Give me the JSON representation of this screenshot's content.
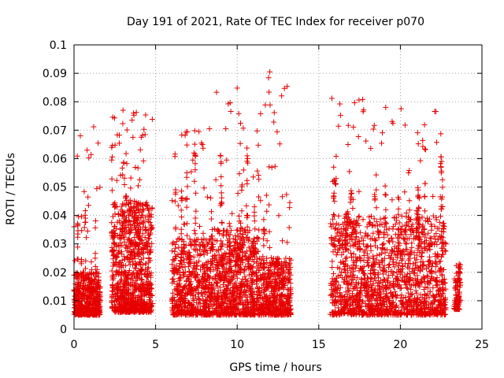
{
  "chart_data": {
    "type": "scatter",
    "title": "Day 191 of 2021, Rate Of TEC Index for receiver p070",
    "xlabel": "GPS time / hours",
    "ylabel": "ROTI / TECUs",
    "xlim": [
      0,
      25
    ],
    "ylim": [
      0,
      0.1
    ],
    "grid": true,
    "marker": "+",
    "color": "#e60000",
    "x_ticks": [
      0,
      5,
      10,
      15,
      20,
      25
    ],
    "x_tick_labels": [
      "0",
      "5",
      "10",
      "15",
      "20",
      "25"
    ],
    "y_ticks": [
      0,
      0.01,
      0.02,
      0.03,
      0.04,
      0.05,
      0.06,
      0.07,
      0.08,
      0.09,
      0.1
    ],
    "y_tick_labels": [
      "0",
      "0.01",
      "0.02",
      "0.03",
      "0.04",
      "0.05",
      "0.06",
      "0.07",
      "0.08",
      "0.09",
      "0.1"
    ],
    "clusters": [
      {
        "x_range": [
          0.0,
          1.6
        ],
        "typical": [
          0.005,
          0.02
        ],
        "max": 0.071,
        "density": 500
      },
      {
        "x_range": [
          2.3,
          4.8
        ],
        "typical": [
          0.006,
          0.045
        ],
        "max": 0.077,
        "density": 900
      },
      {
        "x_range": [
          6.0,
          8.7
        ],
        "typical": [
          0.005,
          0.032
        ],
        "max": 0.07,
        "density": 600
      },
      {
        "x_range": [
          8.7,
          11.3
        ],
        "typical": [
          0.005,
          0.035
        ],
        "max": 0.085,
        "density": 700
      },
      {
        "x_range": [
          11.3,
          13.3
        ],
        "typical": [
          0.005,
          0.025
        ],
        "max": 0.09,
        "density": 500
      },
      {
        "x_range": [
          15.7,
          19.0
        ],
        "typical": [
          0.005,
          0.04
        ],
        "max": 0.081,
        "density": 700
      },
      {
        "x_range": [
          19.0,
          22.8
        ],
        "typical": [
          0.005,
          0.04
        ],
        "max": 0.078,
        "density": 800
      },
      {
        "x_range": [
          23.3,
          23.7
        ],
        "typical": [
          0.007,
          0.022
        ],
        "max": 0.023,
        "density": 80
      }
    ],
    "notable_points": [
      {
        "x": 12.0,
        "y": 0.0905
      },
      {
        "x": 10.0,
        "y": 0.0848
      },
      {
        "x": 15.8,
        "y": 0.0812
      },
      {
        "x": 19.1,
        "y": 0.078
      },
      {
        "x": 3.0,
        "y": 0.077
      },
      {
        "x": 1.2,
        "y": 0.0712
      },
      {
        "x": 7.4,
        "y": 0.0698
      },
      {
        "x": 8.3,
        "y": 0.0705
      },
      {
        "x": 21.1,
        "y": 0.0652
      },
      {
        "x": 0.0,
        "y": 0.036
      }
    ]
  }
}
